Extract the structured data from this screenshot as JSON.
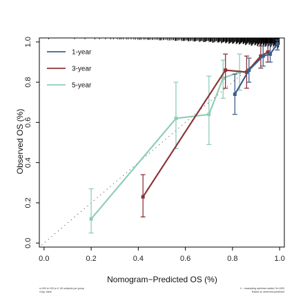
{
  "chart_data": {
    "type": "line",
    "xlabel": "Nomogram−Predicted OS (%)",
    "ylabel": "Observed OS (%)",
    "xlim": [
      -0.02,
      1.02
    ],
    "ylim": [
      -0.02,
      1.02
    ],
    "x_ticks": [
      0.0,
      0.2,
      0.4,
      0.6,
      0.8,
      1.0
    ],
    "y_ticks": [
      0.0,
      0.2,
      0.4,
      0.6,
      0.8,
      1.0
    ],
    "x_tick_labels": [
      "0.0",
      "0.2",
      "0.4",
      "0.6",
      "0.8",
      "1.0"
    ],
    "y_tick_labels": [
      "0.0",
      "0.2",
      "0.4",
      "0.6",
      "0.8",
      "1.0"
    ],
    "legend_position": "top-left",
    "grid": false,
    "reference_line": "ideal",
    "series": [
      {
        "name": "1-year",
        "color": "#3d5e8c",
        "points": [
          {
            "x": 0.81,
            "y": 0.74,
            "lo": 0.64,
            "hi": 0.84
          },
          {
            "x": 0.87,
            "y": 0.86,
            "lo": 0.8,
            "hi": 0.92
          },
          {
            "x": 0.93,
            "y": 0.93,
            "lo": 0.88,
            "hi": 0.98
          },
          {
            "x": 0.96,
            "y": 0.94,
            "lo": 0.9,
            "hi": 0.99
          },
          {
            "x": 0.99,
            "y": 0.99,
            "lo": 0.96,
            "hi": 1.01
          }
        ]
      },
      {
        "name": "3-year",
        "color": "#8b3338",
        "points": [
          {
            "x": 0.42,
            "y": 0.23,
            "lo": 0.13,
            "hi": 0.34
          },
          {
            "x": 0.77,
            "y": 0.86,
            "lo": 0.77,
            "hi": 0.94
          },
          {
            "x": 0.86,
            "y": 0.85,
            "lo": 0.77,
            "hi": 0.93
          },
          {
            "x": 0.92,
            "y": 0.93,
            "lo": 0.87,
            "hi": 0.98
          },
          {
            "x": 0.95,
            "y": 0.95,
            "lo": 0.9,
            "hi": 0.99
          }
        ]
      },
      {
        "name": "5-year",
        "color": "#8fcdb7",
        "points": [
          {
            "x": 0.2,
            "y": 0.12,
            "lo": 0.05,
            "hi": 0.27
          },
          {
            "x": 0.56,
            "y": 0.62,
            "lo": 0.47,
            "hi": 0.8
          },
          {
            "x": 0.7,
            "y": 0.64,
            "lo": 0.49,
            "hi": 0.83
          },
          {
            "x": 0.76,
            "y": 0.82,
            "lo": 0.72,
            "hi": 0.91
          },
          {
            "x": 0.83,
            "y": 0.85,
            "lo": 0.76,
            "hi": 0.94
          }
        ]
      }
    ],
    "footnote_left": [
      "n=303 d=120 p=2, 60 subjects per group",
      "Gray: ideal"
    ],
    "footnote_right": [
      "X - resampling optimism added, B=1000",
      "Based on observed-predicted"
    ]
  }
}
